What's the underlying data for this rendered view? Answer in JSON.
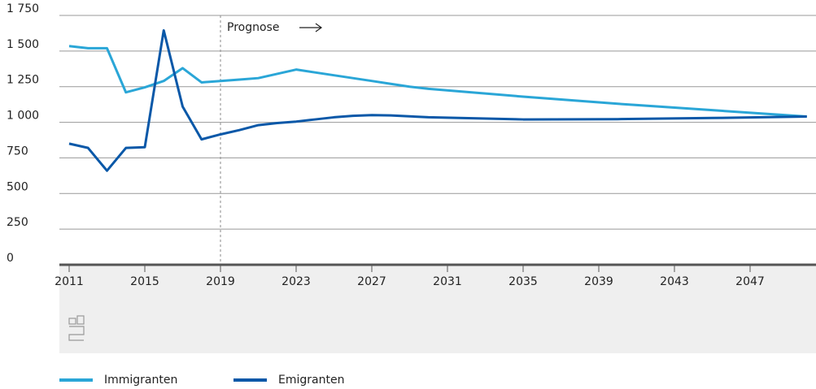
{
  "chart_data": {
    "type": "line",
    "annotation": "Prognose",
    "annotation_x": 2019,
    "x": [
      2011,
      2012,
      2013,
      2014,
      2015,
      2016,
      2017,
      2018,
      2019,
      2020,
      2021,
      2022,
      2023,
      2024,
      2025,
      2026,
      2027,
      2028,
      2029,
      2030,
      2035,
      2040,
      2045,
      2050
    ],
    "series": [
      {
        "name": "Immigranten",
        "color": "#2aa6d7",
        "values": [
          1535,
          1520,
          1520,
          1210,
          1245,
          1290,
          1380,
          1280,
          1290,
          1300,
          1310,
          1340,
          1370,
          1350,
          1330,
          1310,
          1290,
          1270,
          1250,
          1235,
          1180,
          1130,
          1085,
          1040
        ]
      },
      {
        "name": "Emigranten",
        "color": "#0a58a8",
        "values": [
          850,
          820,
          660,
          820,
          825,
          1645,
          1110,
          880,
          915,
          945,
          980,
          995,
          1005,
          1020,
          1035,
          1045,
          1050,
          1048,
          1042,
          1035,
          1020,
          1022,
          1030,
          1040
        ]
      }
    ],
    "xlim": [
      2011,
      2050.5
    ],
    "xticks": [
      2011,
      2015,
      2019,
      2023,
      2027,
      2031,
      2035,
      2039,
      2043,
      2047
    ],
    "ylim": [
      0,
      1750
    ],
    "yticks": [
      0,
      250,
      500,
      750,
      {
        "value": 1000,
        "label": "1 000"
      },
      {
        "value": 1250,
        "label": "1 250"
      },
      {
        "value": 1500,
        "label": "1 500"
      },
      {
        "value": 1750,
        "label": "1 750"
      }
    ],
    "grid": true
  }
}
